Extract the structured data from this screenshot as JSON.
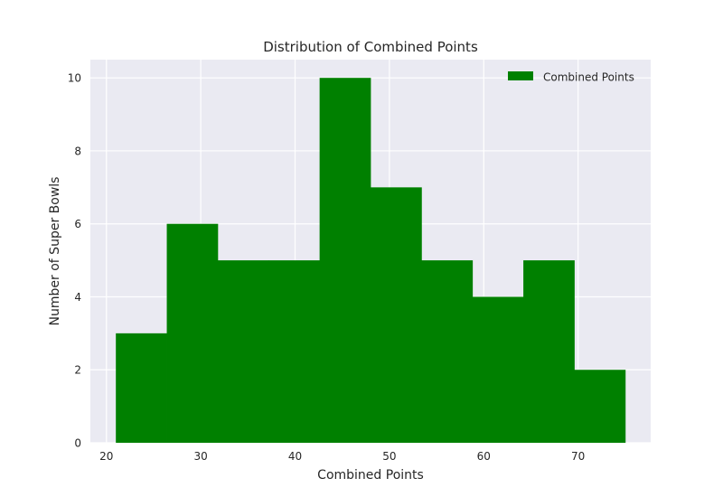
{
  "chart_data": {
    "type": "bar",
    "title": "Distribution of Combined Points",
    "xlabel": "Combined Points",
    "ylabel": "Number of Super Bowls",
    "xlim": [
      18.3,
      77.7
    ],
    "ylim": [
      0,
      10.5
    ],
    "xticks": [
      20,
      30,
      40,
      50,
      60,
      70
    ],
    "yticks": [
      0,
      2,
      4,
      6,
      8,
      10
    ],
    "grid": true,
    "legend_position": "top-right",
    "bin_edges": [
      21,
      26.4,
      31.8,
      37.2,
      42.6,
      48,
      53.4,
      58.8,
      64.2,
      69.6,
      75
    ],
    "series": [
      {
        "name": "Combined Points",
        "values": [
          3,
          6,
          5,
          5,
          10,
          7,
          5,
          4,
          5,
          2
        ]
      }
    ],
    "colors": {
      "bar": "#008000",
      "plot_bg": "#eaeaf2",
      "grid": "#ffffff"
    }
  }
}
